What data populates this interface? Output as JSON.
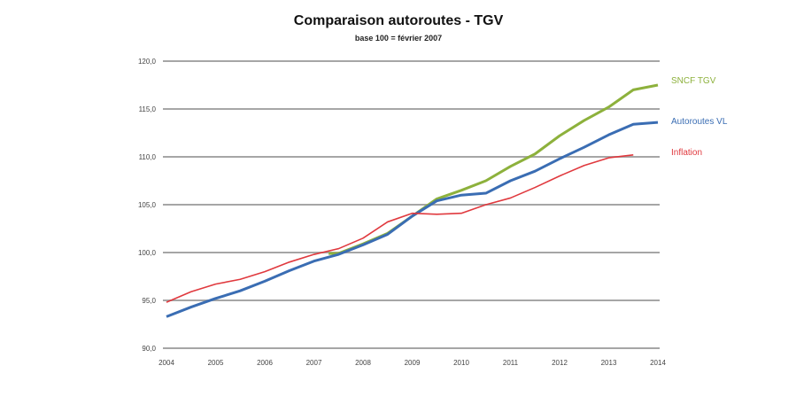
{
  "chart_data": {
    "type": "line",
    "title": "Comparaison autoroutes - TGV",
    "subtitle": "base 100 = février 2007",
    "xlabel": "",
    "ylabel": "",
    "xlim": [
      2004,
      2014
    ],
    "ylim": [
      90,
      120
    ],
    "grid": true,
    "legend": "inline-right",
    "yticks": [
      "90,0",
      "95,0",
      "100,0",
      "105,0",
      "110,0",
      "115,0",
      "120,0"
    ],
    "ytick_values": [
      90,
      95,
      100,
      105,
      110,
      115,
      120
    ],
    "xticks": [
      "2004",
      "2005",
      "2006",
      "2007",
      "2008",
      "2009",
      "2010",
      "2011",
      "2012",
      "2013",
      "2014"
    ],
    "series": [
      {
        "name": "SNCF TGV",
        "color": "#8db13c",
        "x": [
          2007.3,
          2007.5,
          2008,
          2008.5,
          2009,
          2009.5,
          2010,
          2010.5,
          2011,
          2011.5,
          2012,
          2012.5,
          2013,
          2013.5,
          2014
        ],
        "y": [
          99.9,
          99.9,
          100.9,
          102.0,
          103.8,
          105.6,
          106.5,
          107.5,
          109.0,
          110.3,
          112.2,
          113.8,
          115.2,
          117.0,
          117.5
        ]
      },
      {
        "name": "Autoroutes VL",
        "color": "#3a6db3",
        "x": [
          2004,
          2004.5,
          2005,
          2005.5,
          2006,
          2006.5,
          2007,
          2007.5,
          2008,
          2008.5,
          2009,
          2009.5,
          2010,
          2010.5,
          2011,
          2011.5,
          2012,
          2012.5,
          2013,
          2013.5,
          2014
        ],
        "y": [
          93.3,
          94.3,
          95.2,
          96.0,
          97.0,
          98.1,
          99.1,
          99.8,
          100.8,
          101.9,
          103.8,
          105.4,
          106.0,
          106.2,
          107.5,
          108.5,
          109.8,
          111.0,
          112.3,
          113.4,
          113.6
        ]
      },
      {
        "name": "Inflation",
        "color": "#e0393e",
        "x": [
          2004,
          2004.5,
          2005,
          2005.5,
          2006,
          2006.5,
          2007,
          2007.5,
          2008,
          2008.5,
          2009,
          2009.5,
          2010,
          2010.5,
          2011,
          2011.5,
          2012,
          2012.5,
          2013,
          2013.5
        ],
        "y": [
          94.8,
          95.9,
          96.7,
          97.2,
          98.0,
          99.0,
          99.8,
          100.4,
          101.5,
          103.2,
          104.1,
          104.0,
          104.1,
          105.0,
          105.7,
          106.8,
          108.0,
          109.1,
          109.9,
          110.2
        ]
      }
    ]
  }
}
